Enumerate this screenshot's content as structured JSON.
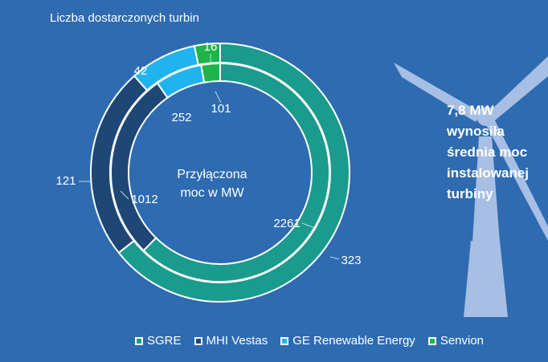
{
  "page_title": "Liczba dostarczonych turbin",
  "stat_lines": [
    "7,8 MW",
    "wynosiła",
    "średnia moc",
    "instalowanej",
    "turbiny"
  ],
  "colors": {
    "background": "#2e6bb1",
    "SGRE": "#1a9b8d",
    "MHI Vestas": "#1f4775",
    "GE Renewable Energy": "#1fb3ef",
    "Senvion": "#1fb34b",
    "turbine": "#a7bfe4"
  },
  "chart_data": {
    "type": "pie",
    "variant": "nested-donut",
    "center_label_lines": [
      "Przyłączona",
      "moc w MW"
    ],
    "categories": [
      "SGRE",
      "MHI Vestas",
      "GE Renewable Energy",
      "Senvion"
    ],
    "series": [
      {
        "ring": "outer",
        "values": [
          323,
          121,
          42,
          16
        ]
      },
      {
        "ring": "inner",
        "values": [
          2261,
          1012,
          252,
          101
        ]
      }
    ],
    "legend_position": "bottom"
  }
}
